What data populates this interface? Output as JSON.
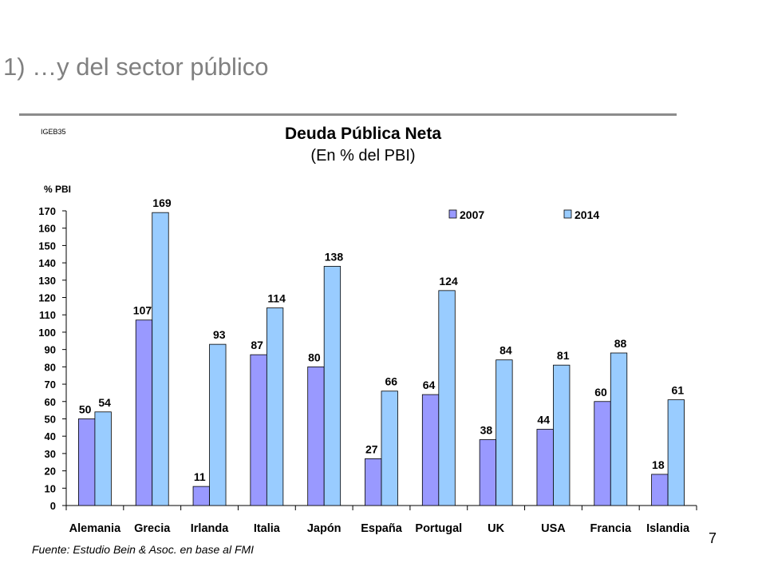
{
  "slide": {
    "title": "1) …y del sector público",
    "code": "IGEB35",
    "source": "Fuente: Estudio Bein & Asoc. en base al FMI",
    "page_number": "7"
  },
  "colors": {
    "series_2007": "#9999ff",
    "series_2014": "#99ccff",
    "bar_outline": "#000000",
    "title_gray": "#808080"
  },
  "chart_data": {
    "type": "bar",
    "title": "Deuda Pública Neta",
    "subtitle": "(En % del PBI)",
    "ylabel": "% PBI",
    "xlabel": "",
    "ylim": [
      0,
      170
    ],
    "yticks": [
      0,
      10,
      20,
      30,
      40,
      50,
      60,
      70,
      80,
      90,
      100,
      110,
      120,
      130,
      140,
      150,
      160,
      170
    ],
    "grid": false,
    "legend_position": "top-right",
    "categories": [
      "Alemania",
      "Grecia",
      "Irlanda",
      "Italia",
      "Japón",
      "España",
      "Portugal",
      "UK",
      "USA",
      "Francia",
      "Islandia"
    ],
    "series": [
      {
        "name": "2007",
        "values": [
          50,
          107,
          11,
          87,
          80,
          27,
          64,
          38,
          44,
          60,
          18
        ]
      },
      {
        "name": "2014",
        "values": [
          54,
          169,
          93,
          114,
          138,
          66,
          124,
          84,
          81,
          88,
          61
        ]
      }
    ]
  }
}
